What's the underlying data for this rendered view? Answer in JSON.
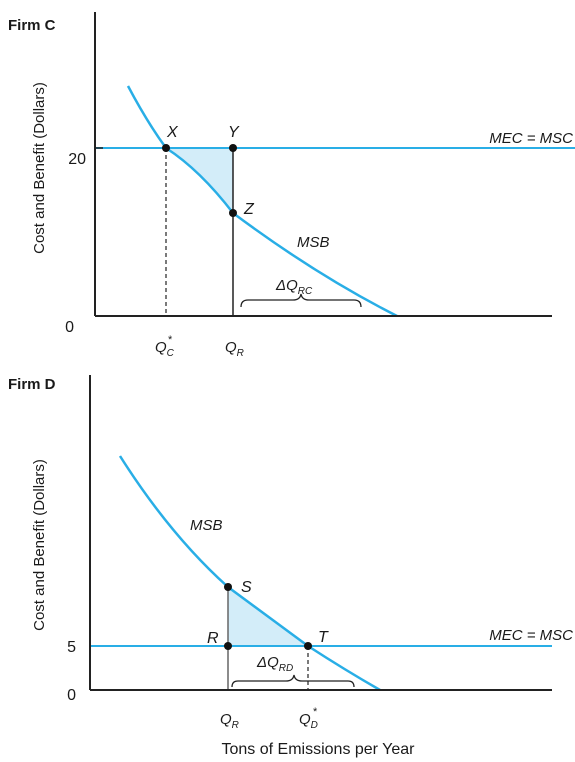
{
  "firmC": {
    "title": "Firm C",
    "ylabel": "Cost and Benefit (Dollars)",
    "y_tick_20": "20",
    "y_tick_0": "0",
    "mec_label": "MEC = MSC",
    "msb_label": "MSB",
    "point_x": "X",
    "point_y": "Y",
    "point_z": "Z",
    "qc_star": "Q",
    "qc_star_sub": "C",
    "qr": "Q",
    "qr_sub": "R",
    "delta_q": "ΔQ",
    "delta_q_sub": "RC"
  },
  "firmD": {
    "title": "Firm D",
    "ylabel": "Cost and Benefit (Dollars)",
    "y_tick_5": "5",
    "y_tick_0": "0",
    "mec_label": "MEC = MSC",
    "msb_label": "MSB",
    "point_s": "S",
    "point_r": "R",
    "point_t": "T",
    "qr": "Q",
    "qr_sub": "R",
    "qd_star": "Q",
    "qd_star_sub": "D",
    "delta_q": "ΔQ",
    "delta_q_sub": "RD",
    "xlabel": "Tons of Emissions per Year"
  },
  "colors": {
    "curve": "#29aee6",
    "shade": "#d3edf9",
    "axis": "#222222"
  }
}
